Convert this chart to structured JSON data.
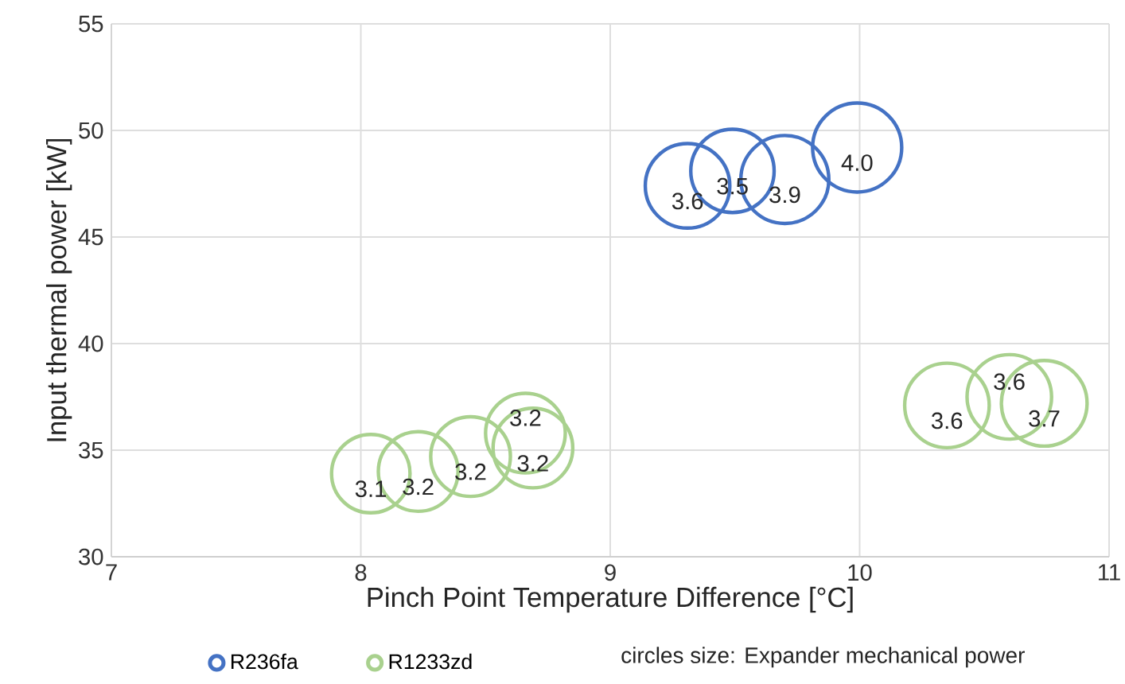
{
  "chart_data": {
    "type": "bubble",
    "xlabel": "Pinch Point Temperature Difference [°C]",
    "ylabel": "Input thermal power [kW]",
    "xlim": [
      7,
      11
    ],
    "xticks": [
      7,
      8,
      9,
      10,
      11
    ],
    "ylim": [
      30,
      55
    ],
    "yticks": [
      30,
      35,
      40,
      45,
      50,
      55
    ],
    "grid": true,
    "legend": "bottom",
    "marker": "circle",
    "annotations": [
      "circles size: Expander mechanical power"
    ],
    "series": [
      {
        "name": "R236fa",
        "color": "#4472c4",
        "x": [
          9.31,
          9.49,
          9.7,
          9.99
        ],
        "values": [
          47.4,
          48.1,
          47.7,
          49.2
        ],
        "sizes": [
          3.6,
          3.5,
          3.9,
          4.0
        ],
        "value_labels": [
          "3.6",
          "3.5",
          "3.9",
          "4.0"
        ]
      },
      {
        "name": "R1233zd",
        "color": "#a9d18e",
        "x": [
          8.04,
          8.23,
          8.44,
          8.66,
          8.69,
          10.35,
          10.6,
          10.74
        ],
        "values": [
          33.9,
          34.0,
          34.7,
          35.8,
          35.1,
          37.1,
          37.5,
          37.2
        ],
        "sizes": [
          3.1,
          3.2,
          3.2,
          3.2,
          3.2,
          3.6,
          3.6,
          3.7
        ],
        "value_labels": [
          "3.1",
          "3.2",
          "3.2",
          "3.2",
          "3.2",
          "3.6",
          "3.6",
          "3.7"
        ]
      }
    ]
  }
}
